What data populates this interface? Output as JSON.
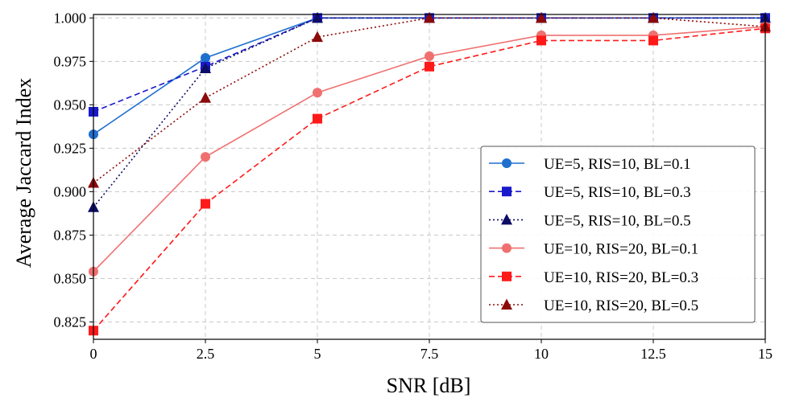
{
  "chart_data": {
    "type": "line",
    "xlabel": "SNR [dB]",
    "ylabel": "Average Jaccard Index",
    "xlim": [
      0,
      15
    ],
    "ylim": [
      0.815,
      1.002
    ],
    "xticks": [
      0,
      2.5,
      5,
      7.5,
      10,
      12.5,
      15
    ],
    "xtick_labels": [
      "0",
      "2.5",
      "5",
      "7.5",
      "10",
      "12.5",
      "15"
    ],
    "yticks": [
      0.825,
      0.85,
      0.875,
      0.9,
      0.925,
      0.95,
      0.975,
      1.0
    ],
    "ytick_labels": [
      "0.825",
      "0.850",
      "0.875",
      "0.900",
      "0.925",
      "0.950",
      "0.975",
      "1.000"
    ],
    "grid": true,
    "legend_position": "lower-right",
    "x": [
      0,
      2.5,
      5,
      7.5,
      10,
      12.5,
      15
    ],
    "series": [
      {
        "name": "UE=5, RIS=10, BL=0.1",
        "values": [
          0.933,
          0.977,
          1.0,
          1.0,
          1.0,
          1.0,
          1.0
        ],
        "color": "#1f6fcf",
        "linestyle": "solid",
        "marker": "circle"
      },
      {
        "name": "UE=5, RIS=10, BL=0.3",
        "values": [
          0.946,
          0.972,
          1.0,
          1.0,
          1.0,
          1.0,
          1.0
        ],
        "color": "#1a1acc",
        "linestyle": "dashed",
        "marker": "square"
      },
      {
        "name": "UE=5, RIS=10, BL=0.5",
        "values": [
          0.891,
          0.971,
          1.0,
          1.0,
          1.0,
          1.0,
          1.0
        ],
        "color": "#0d0d66",
        "linestyle": "dotted",
        "marker": "triangle"
      },
      {
        "name": "UE=10, RIS=20, BL=0.1",
        "values": [
          0.854,
          0.92,
          0.957,
          0.978,
          0.99,
          0.99,
          0.995
        ],
        "color": "#f07070",
        "linestyle": "solid",
        "marker": "circle"
      },
      {
        "name": "UE=10, RIS=20, BL=0.3",
        "values": [
          0.82,
          0.893,
          0.942,
          0.972,
          0.987,
          0.987,
          0.994
        ],
        "color": "#ff1a1a",
        "linestyle": "dashed",
        "marker": "square"
      },
      {
        "name": "UE=10, RIS=20, BL=0.5",
        "values": [
          0.905,
          0.954,
          0.989,
          1.0,
          1.0,
          1.0,
          0.995
        ],
        "color": "#8b0a0a",
        "linestyle": "dotted",
        "marker": "triangle"
      }
    ]
  }
}
